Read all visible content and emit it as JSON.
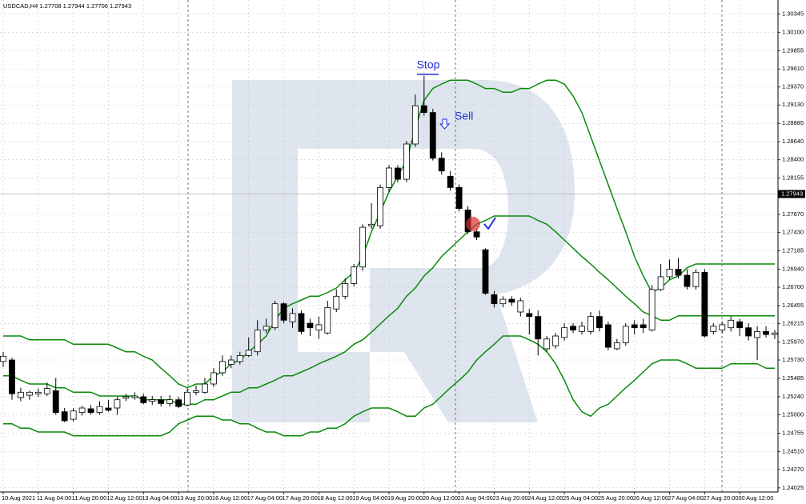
{
  "chart_data": {
    "type": "candlestick",
    "title": "USDCAD,H4  1.27708 1.27944 1.27706 1.27943",
    "categories": [
      "10 Aug 2021",
      null,
      null,
      null,
      "11 Aug 04:00",
      null,
      null,
      null,
      "11 Aug 20:00",
      null,
      null,
      null,
      "12 Aug 12:00",
      null,
      null,
      null,
      "13 Aug 04:00",
      null,
      null,
      null,
      "13 Aug 20:00",
      null,
      null,
      null,
      "16 Aug 12:00",
      null,
      null,
      null,
      "17 Aug 04:00",
      null,
      null,
      null,
      "17 Aug 20:00",
      null,
      null,
      null,
      "18 Aug 12:00",
      null,
      null,
      null,
      "19 Aug 04:00",
      null,
      null,
      null,
      "19 Aug 20:00",
      null,
      null,
      null,
      "20 Aug 12:00",
      null,
      null,
      null,
      "23 Aug 04:00",
      null,
      null,
      null,
      "23 Aug 20:00",
      null,
      null,
      null,
      "24 Aug 12:00",
      null,
      null,
      null,
      "25 Aug 04:00",
      null,
      null,
      null,
      "25 Aug 20:00",
      null,
      null,
      null,
      "26 Aug 12:00",
      null,
      null,
      null,
      "27 Aug 04:00",
      null,
      null,
      null,
      "27 Aug 20:00",
      null,
      null,
      null,
      "30 Aug 12:00",
      null,
      null,
      null,
      null
    ],
    "open": [
      1.2571,
      1.2573,
      1.2523,
      1.2526,
      1.2528,
      1.2528,
      1.2532,
      1.2504,
      1.2494,
      1.2503,
      1.2508,
      1.2503,
      1.2509,
      1.2509,
      1.2522,
      1.2523,
      1.2524,
      1.2518,
      1.252,
      1.2515,
      1.252,
      1.2513,
      1.253,
      1.253,
      1.2541,
      1.2556,
      1.2567,
      1.2571,
      1.2579,
      1.2584,
      1.2613,
      1.2616,
      1.2648,
      1.2624,
      1.2635,
      1.2622,
      1.2613,
      1.2609,
      1.2641,
      1.2658,
      1.2675,
      1.2697,
      1.2752,
      1.2752,
      1.2803,
      1.2829,
      1.2814,
      1.2861,
      1.2912,
      1.2903,
      1.2842,
      1.2818,
      1.2803,
      1.2773,
      1.2744,
      1.272,
      1.266,
      1.2648,
      1.2654,
      1.2637,
      1.2635,
      1.2631,
      1.2588,
      1.2592,
      1.2603,
      1.2618,
      1.2611,
      1.2611,
      1.2631,
      1.262,
      1.2588,
      1.2596,
      1.262,
      1.262,
      1.2613,
      1.2667,
      1.2684,
      1.2694,
      1.2686,
      1.2671,
      1.269,
      1.2611,
      1.2613,
      1.2616,
      1.2624,
      1.2616,
      1.2603,
      1.2611,
      1.2607
    ],
    "high": [
      1.2584,
      1.2576,
      1.2536,
      1.2532,
      1.2535,
      1.2543,
      1.2549,
      1.2509,
      1.2509,
      1.2512,
      1.2513,
      1.2518,
      1.252,
      1.2524,
      1.2528,
      1.253,
      1.2528,
      1.2525,
      1.2525,
      1.2526,
      1.2524,
      1.2535,
      1.2539,
      1.2549,
      1.2562,
      1.2579,
      1.2579,
      1.2584,
      1.2603,
      1.2626,
      1.2628,
      1.2652,
      1.265,
      1.2642,
      1.2639,
      1.2628,
      1.2631,
      1.2652,
      1.2667,
      1.2682,
      1.2701,
      1.2754,
      1.2782,
      1.2807,
      1.2833,
      1.2833,
      1.2865,
      1.2927,
      1.2952,
      1.2908,
      1.285,
      1.2825,
      1.2807,
      1.2778,
      1.2748,
      1.2722,
      1.2665,
      1.2658,
      1.2658,
      1.2656,
      1.2641,
      1.2639,
      1.2605,
      1.2609,
      1.2622,
      1.2622,
      1.2624,
      1.2637,
      1.2639,
      1.2624,
      1.2601,
      1.2622,
      1.2626,
      1.2628,
      1.2673,
      1.2701,
      1.2707,
      1.2709,
      1.2694,
      1.2694,
      1.2694,
      1.2622,
      1.2624,
      1.2631,
      1.2628,
      1.2622,
      1.2618,
      1.2618,
      1.2613
    ],
    "low": [
      1.2564,
      1.252,
      1.2518,
      1.252,
      1.2524,
      1.2525,
      1.25,
      1.249,
      1.2491,
      1.2499,
      1.25,
      1.25,
      1.2504,
      1.25,
      1.2518,
      1.252,
      1.2514,
      1.2513,
      1.2511,
      1.2511,
      1.2509,
      1.2511,
      1.2526,
      1.2528,
      1.2537,
      1.2552,
      1.2562,
      1.2567,
      1.2577,
      1.2579,
      1.2609,
      1.2613,
      1.2622,
      1.2616,
      1.2607,
      1.2605,
      1.2601,
      1.2607,
      1.2637,
      1.2654,
      1.2671,
      1.2692,
      1.2748,
      1.2748,
      1.2797,
      1.281,
      1.281,
      1.2857,
      1.2899,
      1.2839,
      1.282,
      1.2799,
      1.2771,
      1.2741,
      1.2733,
      1.266,
      1.2643,
      1.2643,
      1.2645,
      1.2631,
      1.2607,
      1.2579,
      1.2584,
      1.2588,
      1.2599,
      1.2609,
      1.2607,
      1.2607,
      1.2611,
      1.2586,
      1.2586,
      1.2592,
      1.2607,
      1.2609,
      1.2611,
      1.2665,
      1.268,
      1.2682,
      1.2667,
      1.2667,
      1.2603,
      1.2607,
      1.2609,
      1.2611,
      1.2605,
      1.2599,
      1.2573,
      1.2603,
      1.2601
    ],
    "close": [
      1.2578,
      1.2528,
      1.253,
      1.253,
      1.253,
      1.2535,
      1.2503,
      1.2492,
      1.2505,
      1.2509,
      1.2503,
      1.2511,
      1.2506,
      1.252,
      1.2524,
      1.2525,
      1.2516,
      1.252,
      1.2515,
      1.252,
      1.2511,
      1.253,
      1.2532,
      1.2541,
      1.2556,
      1.2571,
      1.2573,
      1.2579,
      1.2586,
      1.2613,
      1.2618,
      1.2648,
      1.2626,
      1.2635,
      1.2611,
      1.2616,
      1.262,
      1.2643,
      1.2658,
      1.2675,
      1.2697,
      1.275,
      1.2754,
      1.2803,
      1.2829,
      1.2814,
      1.2861,
      1.2912,
      1.2903,
      1.2842,
      1.2825,
      1.2803,
      1.2775,
      1.2744,
      1.2737,
      1.2662,
      1.2648,
      1.2654,
      1.265,
      1.2652,
      1.2631,
      1.2601,
      1.2601,
      1.2605,
      1.2616,
      1.2613,
      1.2618,
      1.2631,
      1.2616,
      1.259,
      1.2596,
      1.2618,
      1.2616,
      1.2616,
      1.2667,
      1.2684,
      1.2694,
      1.2686,
      1.2671,
      1.269,
      1.2605,
      1.2618,
      1.262,
      1.2626,
      1.2616,
      1.2605,
      1.2611,
      1.2607,
      1.2609
    ],
    "bull_color": "#ffffff",
    "bear_color": "#000000",
    "bands": {
      "color": "#0a8a0a",
      "upper": [
        1.2605,
        1.2605,
        1.2605,
        1.26,
        1.26,
        1.26,
        1.26,
        1.26,
        1.2594,
        1.2594,
        1.2594,
        1.2594,
        1.2594,
        1.2589,
        1.2584,
        1.2584,
        1.2578,
        1.2573,
        1.2562,
        1.2552,
        1.2541,
        1.2536,
        1.2541,
        1.2541,
        1.2552,
        1.2557,
        1.2568,
        1.2573,
        1.2584,
        1.2594,
        1.2605,
        1.2626,
        1.2642,
        1.2648,
        1.2653,
        1.2658,
        1.2658,
        1.2663,
        1.2669,
        1.268,
        1.269,
        1.2711,
        1.2744,
        1.277,
        1.2797,
        1.2818,
        1.2839,
        1.2882,
        1.2919,
        1.2935,
        1.2941,
        1.2946,
        1.2946,
        1.2946,
        1.2941,
        1.2935,
        1.2935,
        1.293,
        1.293,
        1.2935,
        1.2935,
        1.2941,
        1.2946,
        1.2946,
        1.2941,
        1.2925,
        1.2903,
        1.2871,
        1.2839,
        1.2807,
        1.2775,
        1.2744,
        1.2711,
        1.2685,
        1.2663,
        1.2669,
        1.268,
        1.2685,
        1.2696,
        1.2701,
        1.2701,
        1.2701,
        1.2701,
        1.2701,
        1.2701,
        1.2701,
        1.2701,
        1.2701,
        1.2701
      ],
      "middle": [
        1.2552,
        1.2552,
        1.2546,
        1.2541,
        1.2541,
        1.2541,
        1.2536,
        1.2536,
        1.253,
        1.253,
        1.253,
        1.2525,
        1.2525,
        1.2525,
        1.2525,
        1.2525,
        1.252,
        1.252,
        1.252,
        1.252,
        1.2514,
        1.2514,
        1.2514,
        1.252,
        1.252,
        1.2525,
        1.253,
        1.253,
        1.2536,
        1.2536,
        1.2541,
        1.2546,
        1.2552,
        1.2552,
        1.2557,
        1.2562,
        1.2568,
        1.2573,
        1.2578,
        1.2584,
        1.2594,
        1.26,
        1.261,
        1.2621,
        1.2632,
        1.2642,
        1.2658,
        1.2669,
        1.2685,
        1.2696,
        1.2711,
        1.2722,
        1.2733,
        1.2744,
        1.2754,
        1.2759,
        1.2765,
        1.2765,
        1.2765,
        1.2765,
        1.2765,
        1.2759,
        1.2754,
        1.2744,
        1.2733,
        1.2722,
        1.2711,
        1.2701,
        1.269,
        1.268,
        1.2669,
        1.2658,
        1.2648,
        1.2637,
        1.2632,
        1.2626,
        1.2626,
        1.2632,
        1.2632,
        1.2632,
        1.2632,
        1.2632,
        1.2632,
        1.2632,
        1.2632,
        1.2632,
        1.2632,
        1.2632,
        1.2632
      ],
      "lower": [
        1.2488,
        1.2488,
        1.2482,
        1.2482,
        1.2477,
        1.2477,
        1.2477,
        1.2477,
        1.2472,
        1.2472,
        1.2472,
        1.2472,
        1.2472,
        1.2472,
        1.2472,
        1.2472,
        1.2472,
        1.2472,
        1.2472,
        1.2477,
        1.2488,
        1.2493,
        1.2498,
        1.2498,
        1.2498,
        1.2493,
        1.2493,
        1.2488,
        1.2488,
        1.2482,
        1.2477,
        1.2477,
        1.2472,
        1.2472,
        1.2472,
        1.2477,
        1.2477,
        1.2482,
        1.2482,
        1.2488,
        1.2498,
        1.2504,
        1.2509,
        1.2509,
        1.2509,
        1.2504,
        1.2498,
        1.2498,
        1.2509,
        1.2514,
        1.2525,
        1.2536,
        1.2546,
        1.2557,
        1.2573,
        1.2584,
        1.2594,
        1.2605,
        1.2605,
        1.2605,
        1.26,
        1.2594,
        1.2584,
        1.2568,
        1.2546,
        1.252,
        1.2504,
        1.2498,
        1.2509,
        1.2514,
        1.2525,
        1.2536,
        1.2546,
        1.2557,
        1.2568,
        1.2573,
        1.2573,
        1.2573,
        1.2568,
        1.2562,
        1.2562,
        1.2562,
        1.2562,
        1.2568,
        1.2568,
        1.2568,
        1.2568,
        1.2562,
        1.2562
      ]
    },
    "ylim": [
      1.2397,
      1.3053
    ],
    "yticks": [
      1.30345,
      {
        "value": 1.301,
        "label": "1.30100"
      },
      1.29855,
      {
        "value": 1.2961,
        "label": "1.29610"
      },
      {
        "value": 1.2937,
        "label": "1.29370"
      },
      {
        "value": 1.2913,
        "label": "1.29130"
      },
      1.28885,
      {
        "value": 1.2864,
        "label": "1.28640"
      },
      {
        "value": 1.284,
        "label": "1.28400"
      },
      1.28155,
      {
        "value": 1.2767,
        "label": "1.27670"
      },
      {
        "value": 1.2743,
        "label": "1.27430"
      },
      1.27185,
      {
        "value": 1.2694,
        "label": "1.26940"
      },
      {
        "value": 1.267,
        "label": "1.26700"
      },
      1.26455,
      1.26215,
      {
        "value": 1.2597,
        "label": "1.25970"
      },
      {
        "value": 1.2573,
        "label": "1.25730"
      },
      1.25485,
      {
        "value": 1.2524,
        "label": "1.25240"
      },
      {
        "value": 1.25,
        "label": "1.25000"
      },
      1.24755,
      {
        "value": 1.2451,
        "label": "1.24510"
      },
      {
        "value": 1.2427,
        "label": "1.24270"
      },
      1.24025
    ],
    "grid": true,
    "current_price": 1.27943,
    "annotations": [
      "Stop",
      "Sell"
    ]
  }
}
